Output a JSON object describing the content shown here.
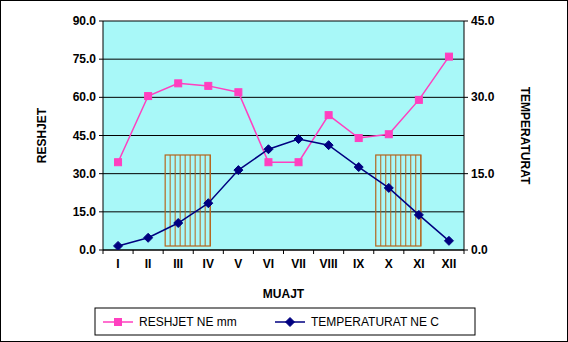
{
  "chart_data": {
    "type": "line",
    "x_label": "MUAJT",
    "y_label": "RESHJET",
    "y2_label": "TEMPERATURAT",
    "categories": [
      "I",
      "II",
      "III",
      "IV",
      "V",
      "VI",
      "VII",
      "VIII",
      "IX",
      "X",
      "XI",
      "XII"
    ],
    "series": [
      {
        "name": "RESHJET NE mm",
        "color": "#ff3fbf",
        "marker": "square",
        "values": [
          34.5,
          60.5,
          65.5,
          64.5,
          62,
          34.5,
          34.5,
          53,
          44,
          45.5,
          59,
          76
        ]
      },
      {
        "name": "TEMPERATURAT NE C",
        "color": "#000080",
        "marker": "diamond",
        "axis": "y2",
        "values": [
          0.8,
          2.4,
          5.3,
          9.2,
          15.7,
          19.8,
          21.8,
          20.6,
          16.3,
          12.2,
          6.9,
          1.8
        ]
      }
    ],
    "ylim": [
      0,
      90
    ],
    "yticks": [
      {
        "value": 0,
        "label": "0.0"
      },
      {
        "value": 15,
        "label": "15.0"
      },
      {
        "value": 30,
        "label": "30.0"
      },
      {
        "value": 45,
        "label": "45.0"
      },
      {
        "value": 60,
        "label": "60.0"
      },
      {
        "value": 75,
        "label": "75.0"
      },
      {
        "value": 90,
        "label": "90.0"
      }
    ],
    "y2lim": [
      0,
      45
    ],
    "y2ticks": [
      {
        "value": 0,
        "label": "0.0"
      },
      {
        "value": 15,
        "label": "15.0"
      },
      {
        "value": 30,
        "label": "30.0"
      },
      {
        "value": 45,
        "label": "45.0"
      }
    ],
    "grid": true,
    "legend": "bottom"
  }
}
